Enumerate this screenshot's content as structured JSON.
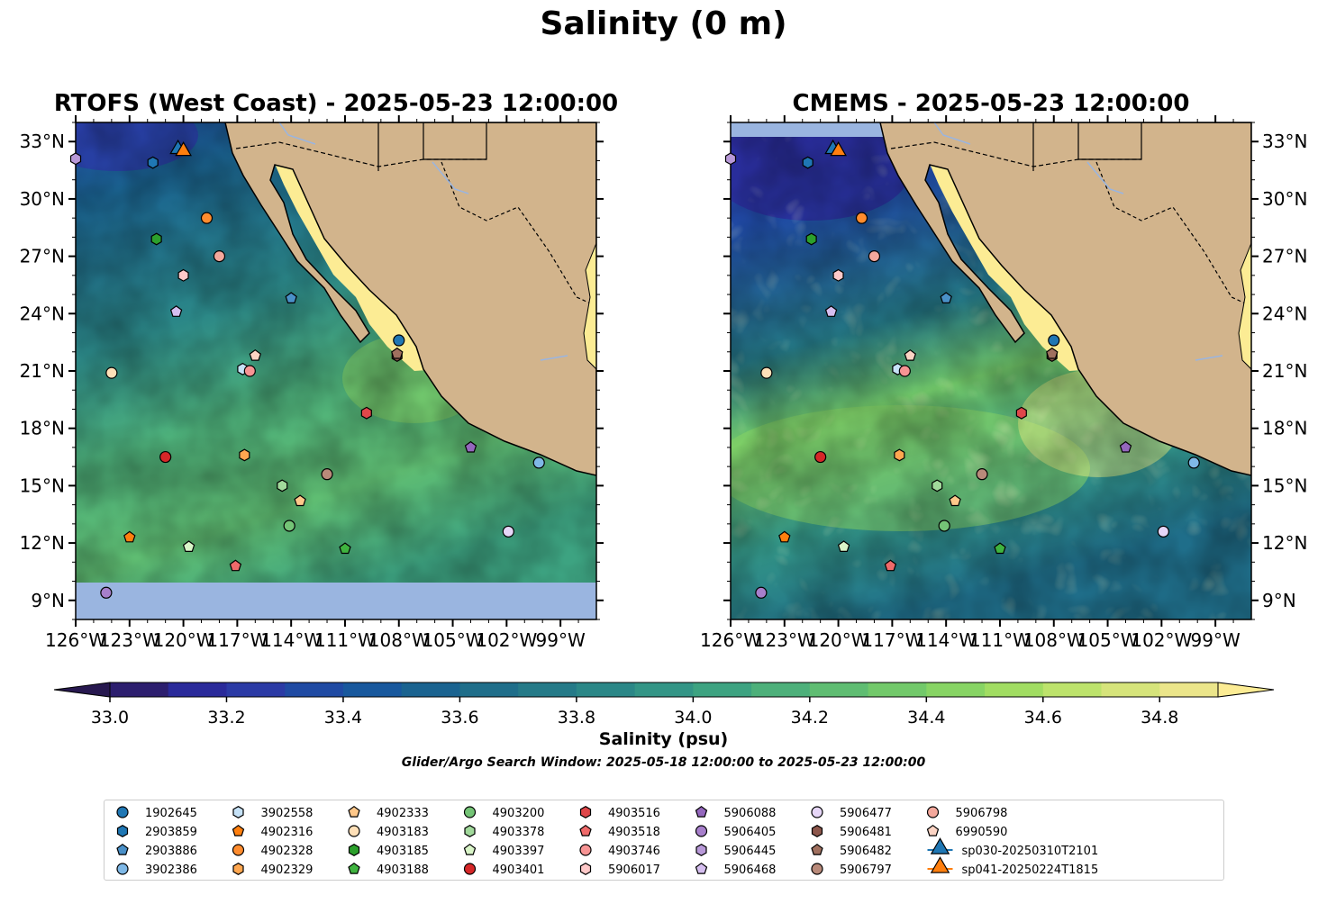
{
  "title": "Salinity (0 m)",
  "colorbar_label": "Salinity (psu)",
  "search_window": "Glider/Argo Search Window: 2025-05-18 12:00:00 to 2025-05-23 12:00:00",
  "colors": {
    "land": "#d2b48c",
    "ocean_nodata": "#9ab5e0",
    "gulf_high_salinity": "#fcec94",
    "glider_sp030": "#1f77b4",
    "glider_sp041": "#ff7f0e"
  },
  "chart_data": [
    {
      "type": "heatmap",
      "title": "RTOFS (West Coast) - 2025-05-23 12:00:00",
      "xlim": [
        -126,
        -97
      ],
      "ylim": [
        8,
        34
      ],
      "x_ticks": [
        "126°W",
        "123°W",
        "120°W",
        "117°W",
        "114°W",
        "111°W",
        "108°W",
        "105°W",
        "102°W",
        "99°W"
      ],
      "y_ticks": [
        "9°N",
        "12°N",
        "15°N",
        "18°N",
        "21°N",
        "24°N",
        "27°N",
        "30°N",
        "33°N"
      ],
      "no_data_below_lat": 10.1
    },
    {
      "type": "heatmap",
      "title": "CMEMS - 2025-05-23 12:00:00",
      "xlim": [
        -126,
        -97
      ],
      "ylim": [
        8,
        34
      ],
      "x_ticks": [
        "126°W",
        "123°W",
        "120°W",
        "117°W",
        "114°W",
        "111°W",
        "108°W",
        "105°W",
        "102°W",
        "99°W"
      ],
      "y_ticks": [
        "9°N",
        "12°N",
        "15°N",
        "18°N",
        "21°N",
        "24°N",
        "27°N",
        "30°N",
        "33°N"
      ]
    }
  ],
  "colorbar": {
    "min": 33.0,
    "max": 34.9,
    "step": 0.1,
    "extend": "both",
    "tick_labels": [
      "33.0",
      "33.2",
      "33.4",
      "33.6",
      "33.8",
      "34.0",
      "34.2",
      "34.4",
      "34.6",
      "34.8"
    ],
    "colors": [
      "#2c1e6e",
      "#2a2a9a",
      "#2b3aa5",
      "#1f4aa3",
      "#18589d",
      "#1a6390",
      "#1f6e8a",
      "#257a88",
      "#2b8787",
      "#339586",
      "#3da381",
      "#4db07a",
      "#5fbd72",
      "#72c96a",
      "#87d464",
      "#a1dd62",
      "#bde36c",
      "#d6e47b",
      "#ebe58a"
    ]
  },
  "observations": [
    {
      "id": "1902645",
      "lat": 22.6,
      "lon": -108.0,
      "marker": "circle",
      "color": "#1f77b4"
    },
    {
      "id": "2903859",
      "lat": 31.9,
      "lon": -121.7,
      "marker": "hexagon",
      "color": "#1f77b4"
    },
    {
      "id": "2903886",
      "lat": 24.8,
      "lon": -114.0,
      "marker": "pentagon",
      "color": "#4a90c8"
    },
    {
      "id": "3902386",
      "lat": 16.2,
      "lon": -100.2,
      "marker": "circle",
      "color": "#7fb8e6"
    },
    {
      "id": "3902558",
      "lat": 21.1,
      "lon": -116.7,
      "marker": "hexagon",
      "color": "#c6e2f7"
    },
    {
      "id": "4902316",
      "lat": 12.3,
      "lon": -123.0,
      "marker": "pentagon",
      "color": "#ff7f0e"
    },
    {
      "id": "4902328",
      "lat": 29.0,
      "lon": -118.7,
      "marker": "circle",
      "color": "#ff8c2e"
    },
    {
      "id": "4902329",
      "lat": 16.6,
      "lon": -116.6,
      "marker": "hexagon",
      "color": "#ffa750"
    },
    {
      "id": "4902333",
      "lat": 14.2,
      "lon": -113.5,
      "marker": "pentagon",
      "color": "#ffc88a"
    },
    {
      "id": "4903183",
      "lat": 20.9,
      "lon": -124.0,
      "marker": "circle",
      "color": "#ffe0b8"
    },
    {
      "id": "4903185",
      "lat": 27.9,
      "lon": -121.5,
      "marker": "hexagon",
      "color": "#2ca02c"
    },
    {
      "id": "4903188",
      "lat": 11.7,
      "lon": -111.0,
      "marker": "pentagon",
      "color": "#3fb33f"
    },
    {
      "id": "4903200",
      "lat": 12.9,
      "lon": -114.1,
      "marker": "circle",
      "color": "#74c476"
    },
    {
      "id": "4903378",
      "lat": 15.0,
      "lon": -114.5,
      "marker": "hexagon",
      "color": "#a1d99b"
    },
    {
      "id": "4903397",
      "lat": 11.8,
      "lon": -119.7,
      "marker": "pentagon",
      "color": "#d9f5c8"
    },
    {
      "id": "4903401",
      "lat": 16.5,
      "lon": -121.0,
      "marker": "circle",
      "color": "#d62728"
    },
    {
      "id": "4903516",
      "lat": 18.8,
      "lon": -109.8,
      "marker": "hexagon",
      "color": "#e0474a"
    },
    {
      "id": "4903518",
      "lat": 10.8,
      "lon": -117.1,
      "marker": "pentagon",
      "color": "#f06a6a"
    },
    {
      "id": "4903746",
      "lat": 21.0,
      "lon": -116.3,
      "marker": "circle",
      "color": "#f79494"
    },
    {
      "id": "5906017",
      "lat": 26.0,
      "lon": -120.0,
      "marker": "hexagon",
      "color": "#ffc9c9"
    },
    {
      "id": "5906088",
      "lat": 17.0,
      "lon": -104.0,
      "marker": "pentagon",
      "color": "#9467bd"
    },
    {
      "id": "5906405",
      "lat": 9.4,
      "lon": -124.3,
      "marker": "circle",
      "color": "#a77fcb"
    },
    {
      "id": "5906445",
      "lat": 32.1,
      "lon": -126.0,
      "marker": "hexagon",
      "color": "#b899d8"
    },
    {
      "id": "5906468",
      "lat": 24.1,
      "lon": -120.4,
      "marker": "pentagon",
      "color": "#d6bff0"
    },
    {
      "id": "5906477",
      "lat": 12.6,
      "lon": -101.9,
      "marker": "circle",
      "color": "#e6d6f7"
    },
    {
      "id": "5906481",
      "lat": 21.8,
      "lon": -108.1,
      "marker": "hexagon",
      "color": "#8c564b"
    },
    {
      "id": "5906482",
      "lat": 21.9,
      "lon": -108.1,
      "marker": "pentagon",
      "color": "#a0705f"
    },
    {
      "id": "5906797",
      "lat": 15.6,
      "lon": -112.0,
      "marker": "circle",
      "color": "#b98a7a"
    },
    {
      "id": "5906798",
      "lat": 27.0,
      "lon": -118.0,
      "marker": "circle",
      "color": "#f4a89c"
    },
    {
      "id": "6990590",
      "lat": 21.8,
      "lon": -116.0,
      "marker": "pentagon",
      "color": "#fcd4c4"
    },
    {
      "id": "sp030-20250310T2101",
      "lat": 32.7,
      "lon": -120.3,
      "marker": "triangle",
      "color": "#1f77b4"
    },
    {
      "id": "sp041-20250224T1815",
      "lat": 32.6,
      "lon": -120.0,
      "marker": "triangle",
      "color": "#ff7f0e"
    }
  ]
}
